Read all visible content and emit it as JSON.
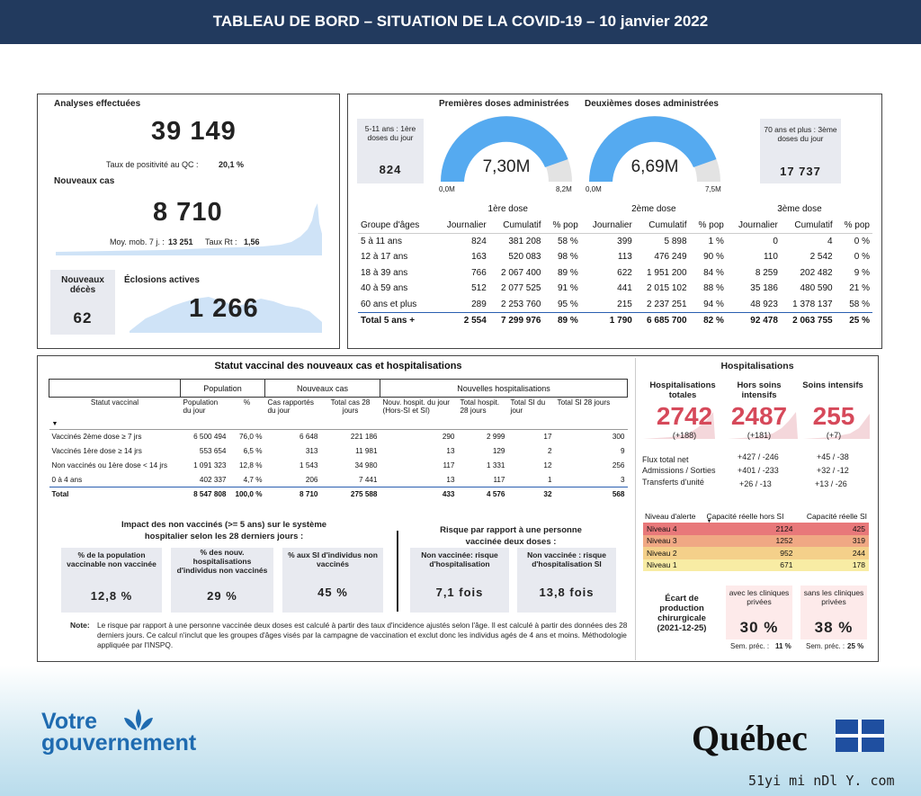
{
  "header": {
    "title": "TABLEAU DE BORD – SITUATION DE LA COVID-19 – 10 janvier 2022"
  },
  "left_panel": {
    "analyses_title": "Analyses effectuées",
    "analyses_value": "39 149",
    "positivity_label": "Taux de positivité au QC :",
    "positivity_value": "20,1 %",
    "new_cases_title": "Nouveaux cas",
    "new_cases_value": "8 710",
    "moy_label": "Moy. mob. 7 j. :",
    "moy_value": "13 251",
    "rt_label": "Taux Rt :",
    "rt_value": "1,56",
    "deaths_title": "Nouveaux décès",
    "deaths_value": "62",
    "outbreaks_title": "Éclosions actives",
    "outbreaks_value": "1 266"
  },
  "vaccination": {
    "box511": {
      "title": "5-11 ans : 1ère doses du jour",
      "value": "824"
    },
    "first_doses": {
      "title": "Premières doses administrées",
      "value": "7,30M",
      "min": "0,0M",
      "max": "8,2M",
      "fraction": 0.89
    },
    "second_doses": {
      "title": "Deuxièmes doses administrées",
      "value": "6,69M",
      "min": "0,0M",
      "max": "7,5M",
      "fraction": 0.89
    },
    "box70": {
      "title": "70 ans et plus : 3ème doses du jour",
      "value": "17 737"
    },
    "table": {
      "groups": [
        "1ère dose",
        "2ème dose",
        "3ème dose"
      ],
      "headers": [
        "Groupe d'âges",
        "Journalier",
        "Cumulatif",
        "% pop",
        "Journalier",
        "Cumulatif",
        "% pop",
        "Journalier",
        "Cumulatif",
        "% pop"
      ],
      "rows": [
        [
          "5 à 11 ans",
          "824",
          "381 208",
          "58 %",
          "399",
          "5 898",
          "1 %",
          "0",
          "4",
          "0 %"
        ],
        [
          "12 à 17 ans",
          "163",
          "520 083",
          "98 %",
          "113",
          "476 249",
          "90 %",
          "110",
          "2 542",
          "0 %"
        ],
        [
          "18 à 39 ans",
          "766",
          "2 067 400",
          "89 %",
          "622",
          "1 951 200",
          "84 %",
          "8 259",
          "202 482",
          "9 %"
        ],
        [
          "40 à 59 ans",
          "512",
          "2 077 525",
          "91 %",
          "441",
          "2 015 102",
          "88 %",
          "35 186",
          "480 590",
          "21 %"
        ],
        [
          "60 ans et plus",
          "289",
          "2 253 760",
          "95 %",
          "215",
          "2 237 251",
          "94 %",
          "48 923",
          "1 378 137",
          "58 %"
        ],
        [
          "Total 5 ans +",
          "2 554",
          "7 299 976",
          "89 %",
          "1 790",
          "6 685 700",
          "82 %",
          "92 478",
          "2 063 755",
          "25 %"
        ]
      ]
    }
  },
  "status": {
    "title": "Statut vaccinal des nouveaux cas et hospitalisations",
    "group_headers": [
      "Population",
      "Nouveaux cas",
      "Nouvelles hospitalisations"
    ],
    "headers": [
      "Statut vaccinal",
      "Population du jour",
      "%",
      "Cas rapportés du jour",
      "Total cas 28 jours",
      "Nouv. hospit. du jour (Hors-SI et SI)",
      "Total hospit. 28 jours",
      "Total SI du jour",
      "Total SI 28 jours"
    ],
    "sort_icon": "sort-down-icon",
    "rows": [
      [
        "Vaccinés 2ème dose ≥ 7 jrs",
        "6 500 494",
        "76,0 %",
        "6 648",
        "221 186",
        "290",
        "2 999",
        "17",
        "300"
      ],
      [
        "Vaccinés 1ère dose ≥ 14 jrs",
        "553 654",
        "6,5 %",
        "313",
        "11 981",
        "13",
        "129",
        "2",
        "9"
      ],
      [
        "Non vaccinés ou 1ère dose < 14 jrs",
        "1 091 323",
        "12,8 %",
        "1 543",
        "34 980",
        "117",
        "1 331",
        "12",
        "256"
      ],
      [
        "0 à 4 ans",
        "402 337",
        "4,7 %",
        "206",
        "7 441",
        "13",
        "117",
        "1",
        "3"
      ],
      [
        "Total",
        "8 547 808",
        "100,0 %",
        "8 710",
        "275 588",
        "433",
        "4 576",
        "32",
        "568"
      ]
    ],
    "impact_title": "Impact des non vaccinés (>= 5 ans) sur le système hospitalier selon les 28 derniers jours :",
    "impact_boxes": [
      {
        "label": "% de la population vaccinable non vaccinée",
        "value": "12,8 %"
      },
      {
        "label": "% des nouv. hospitalisations d'individus non vaccinés",
        "value": "29 %"
      },
      {
        "label": "% aux SI d'individus non vaccinés",
        "value": "45 %"
      }
    ],
    "risk_title": "Risque par rapport à une personne vaccinée deux doses :",
    "risk_boxes": [
      {
        "label": "Non vaccinée: risque d'hospitalisation",
        "value": "7,1 fois"
      },
      {
        "label": "Non vaccinée : risque d'hospitalisation SI",
        "value": "13,8 fois"
      }
    ],
    "note_label": "Note:",
    "note_text": "Le risque par rapport à une personne vaccinée deux doses est calculé à partir des taux d'incidence ajustés selon l'âge. Il est calculé à partir des données des 28 derniers jours. Ce calcul n'inclut que les groupes d'âges visés par la campagne de vaccination et exclut donc les individus agés de 4 ans et moins. Méthodologie appliquée par l'INSPQ."
  },
  "hospital": {
    "title": "Hospitalisations",
    "cols": [
      {
        "label": "Hospitalisations totales",
        "value": "2742",
        "delta": "(+188)"
      },
      {
        "label": "Hors soins intensifs",
        "value": "2487",
        "delta": "(+181)"
      },
      {
        "label": "Soins intensifs",
        "value": "255",
        "delta": "(+7)"
      }
    ],
    "flux": [
      {
        "label": "Flux total net",
        "hors": "+427 / -246",
        "si": "+45 / -38"
      },
      {
        "label": "Admissions / Sorties",
        "hors": "+401 / -233",
        "si": "+32 / -12"
      },
      {
        "label": "Transferts d'unité",
        "hors": "+26 / -13",
        "si": "+13 / -26"
      }
    ],
    "alert_headers": [
      "Niveau d'alerte",
      "Capacité réelle hors SI",
      "Capacité réelle SI"
    ],
    "alert_rows": [
      {
        "level": "Niveau 4",
        "hors": "2124",
        "si": "425",
        "color": "#e8787a"
      },
      {
        "level": "Niveau 3",
        "hors": "1252",
        "si": "319",
        "color": "#f0a884"
      },
      {
        "level": "Niveau 2",
        "hors": "952",
        "si": "244",
        "color": "#f4d08a"
      },
      {
        "level": "Niveau 1",
        "hors": "671",
        "si": "178",
        "color": "#f8eca4"
      }
    ],
    "ecart_label": "Écart de production chirurgicale (2021-12-25)",
    "avec": {
      "label": "avec les cliniques privées",
      "value": "30 %",
      "prev_label": "Sem. préc. :",
      "prev_value": "11 %"
    },
    "sans": {
      "label": "sans les cliniques privées",
      "value": "38 %",
      "prev_label": "Sem. préc. :",
      "prev_value": "25 %"
    }
  },
  "footer": {
    "gov_line1": "Votre",
    "gov_line2": "gouvernement",
    "quebec": "Québec",
    "watermark": "51yi mi nDl Y. com"
  },
  "colors": {
    "header_bg": "#223a5e",
    "gauge_blue": "#55aaf0",
    "hosp_red": "#d6495a",
    "table_line": "#2a5fb0"
  }
}
